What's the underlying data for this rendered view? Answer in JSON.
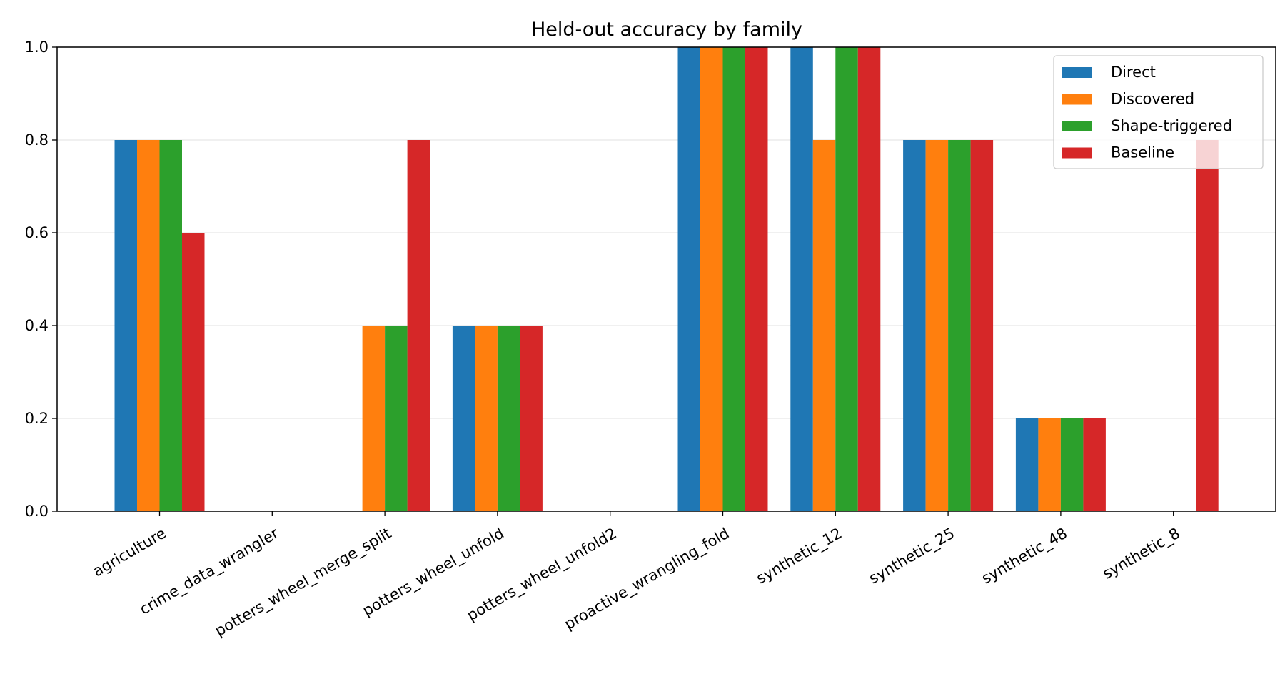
{
  "chart_data": {
    "type": "bar",
    "title": "Held-out accuracy by family",
    "xlabel": "",
    "ylabel": "",
    "ylim": [
      0,
      1.0
    ],
    "yticks": [
      "0.0",
      "0.2",
      "0.4",
      "0.6",
      "0.8",
      "1.0"
    ],
    "grid": "horizontal",
    "legend_position": "top-right",
    "categories": [
      "agriculture",
      "crime_data_wrangler",
      "potters_wheel_merge_split",
      "potters_wheel_unfold",
      "potters_wheel_unfold2",
      "proactive_wrangling_fold",
      "synthetic_12",
      "synthetic_25",
      "synthetic_48",
      "synthetic_8"
    ],
    "series": [
      {
        "name": "Direct",
        "color": "#1f77b4",
        "values": [
          0.8,
          0.0,
          0.0,
          0.4,
          0.0,
          1.0,
          1.0,
          0.8,
          0.2,
          0.0
        ]
      },
      {
        "name": "Discovered",
        "color": "#ff7f0e",
        "values": [
          0.8,
          0.0,
          0.4,
          0.4,
          0.0,
          1.0,
          0.8,
          0.8,
          0.2,
          0.0
        ]
      },
      {
        "name": "Shape-triggered",
        "color": "#2ca02c",
        "values": [
          0.8,
          0.0,
          0.4,
          0.4,
          0.0,
          1.0,
          1.0,
          0.8,
          0.2,
          0.0
        ]
      },
      {
        "name": "Baseline",
        "color": "#d62728",
        "values": [
          0.6,
          0.0,
          0.8,
          0.4,
          0.0,
          1.0,
          1.0,
          0.8,
          0.2,
          0.8
        ]
      }
    ]
  }
}
